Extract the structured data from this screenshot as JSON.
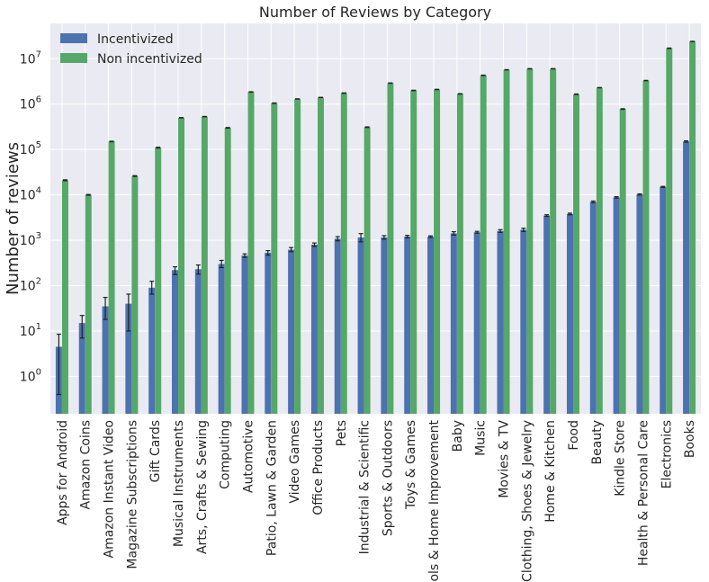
{
  "chart_data": {
    "type": "bar",
    "title": "Number of Reviews by Category",
    "xlabel": "",
    "ylabel": "Number of reviews",
    "yscale": "log",
    "ylim": [
      0.15,
      60000000
    ],
    "grid": true,
    "legend_position": "top-left",
    "y_ticks": [
      {
        "base": "10",
        "exp": "0"
      },
      {
        "base": "10",
        "exp": "1"
      },
      {
        "base": "10",
        "exp": "2"
      },
      {
        "base": "10",
        "exp": "3"
      },
      {
        "base": "10",
        "exp": "4"
      },
      {
        "base": "10",
        "exp": "5"
      },
      {
        "base": "10",
        "exp": "6"
      },
      {
        "base": "10",
        "exp": "7"
      }
    ],
    "categories": [
      "Apps for Android",
      "Amazon Coins",
      "Amazon Instant Video",
      "Magazine Subscriptions",
      "Gift Cards",
      "Musical Instruments",
      "Arts, Crafts & Sewing",
      "Computing",
      "Automotive",
      "Patio, Lawn & Garden",
      "Video Games",
      "Office Products",
      "Pets",
      "Industrial & Scientific",
      "Sports & Outdoors",
      "Toys & Games",
      "Tools & Home Improvement",
      "Baby",
      "Music",
      "Movies & TV",
      "Clothing, Shoes & Jewelry",
      "Home & Kitchen",
      "Food",
      "Beauty",
      "Kindle Store",
      "Health & Personal Care",
      "Electronics",
      "Books"
    ],
    "series": [
      {
        "name": "Incentivized",
        "color": "#4c72b0",
        "values": [
          4.5,
          15,
          35,
          40,
          90,
          220,
          230,
          300,
          460,
          530,
          620,
          800,
          1080,
          1150,
          1150,
          1200,
          1200,
          1420,
          1500,
          1600,
          1700,
          3500,
          3800,
          7000,
          8800,
          10200,
          15000,
          150000
        ],
        "err_low": [
          0.4,
          7,
          18,
          10,
          65,
          175,
          180,
          250,
          420,
          470,
          560,
          730,
          970,
          920,
          1060,
          1130,
          1150,
          1300,
          1430,
          1490,
          1560,
          3350,
          3650,
          6700,
          8500,
          9900,
          14600,
          145000
        ],
        "err_high": [
          8.5,
          22,
          55,
          65,
          125,
          260,
          285,
          360,
          500,
          590,
          690,
          870,
          1200,
          1400,
          1260,
          1280,
          1250,
          1540,
          1570,
          1710,
          1840,
          3650,
          3950,
          7300,
          9100,
          10500,
          15400,
          155000
        ]
      },
      {
        "name": "Non incentivized",
        "color": "#55a868",
        "values": [
          21000,
          10000,
          150000,
          26000,
          110000,
          500000,
          530000,
          300000,
          1850000,
          1050000,
          1300000,
          1400000,
          1750000,
          310000,
          2900000,
          2000000,
          2100000,
          1680000,
          4300000,
          5700000,
          6000000,
          6000000,
          1650000,
          2300000,
          780000,
          3300000,
          17000000,
          24000000
        ],
        "err_low": [
          20500,
          9800,
          148000,
          25500,
          108000,
          495000,
          525000,
          295000,
          1830000,
          1040000,
          1290000,
          1390000,
          1730000,
          305000,
          2870000,
          1980000,
          2080000,
          1660000,
          4250000,
          5650000,
          5950000,
          5950000,
          1630000,
          2280000,
          770000,
          3270000,
          16800000,
          23800000
        ],
        "err_high": [
          21500,
          10200,
          152000,
          26500,
          112000,
          505000,
          535000,
          305000,
          1870000,
          1060000,
          1310000,
          1410000,
          1770000,
          315000,
          2930000,
          2020000,
          2120000,
          1700000,
          4350000,
          5750000,
          6050000,
          6050000,
          1670000,
          2320000,
          790000,
          3330000,
          17200000,
          24200000
        ]
      }
    ]
  }
}
